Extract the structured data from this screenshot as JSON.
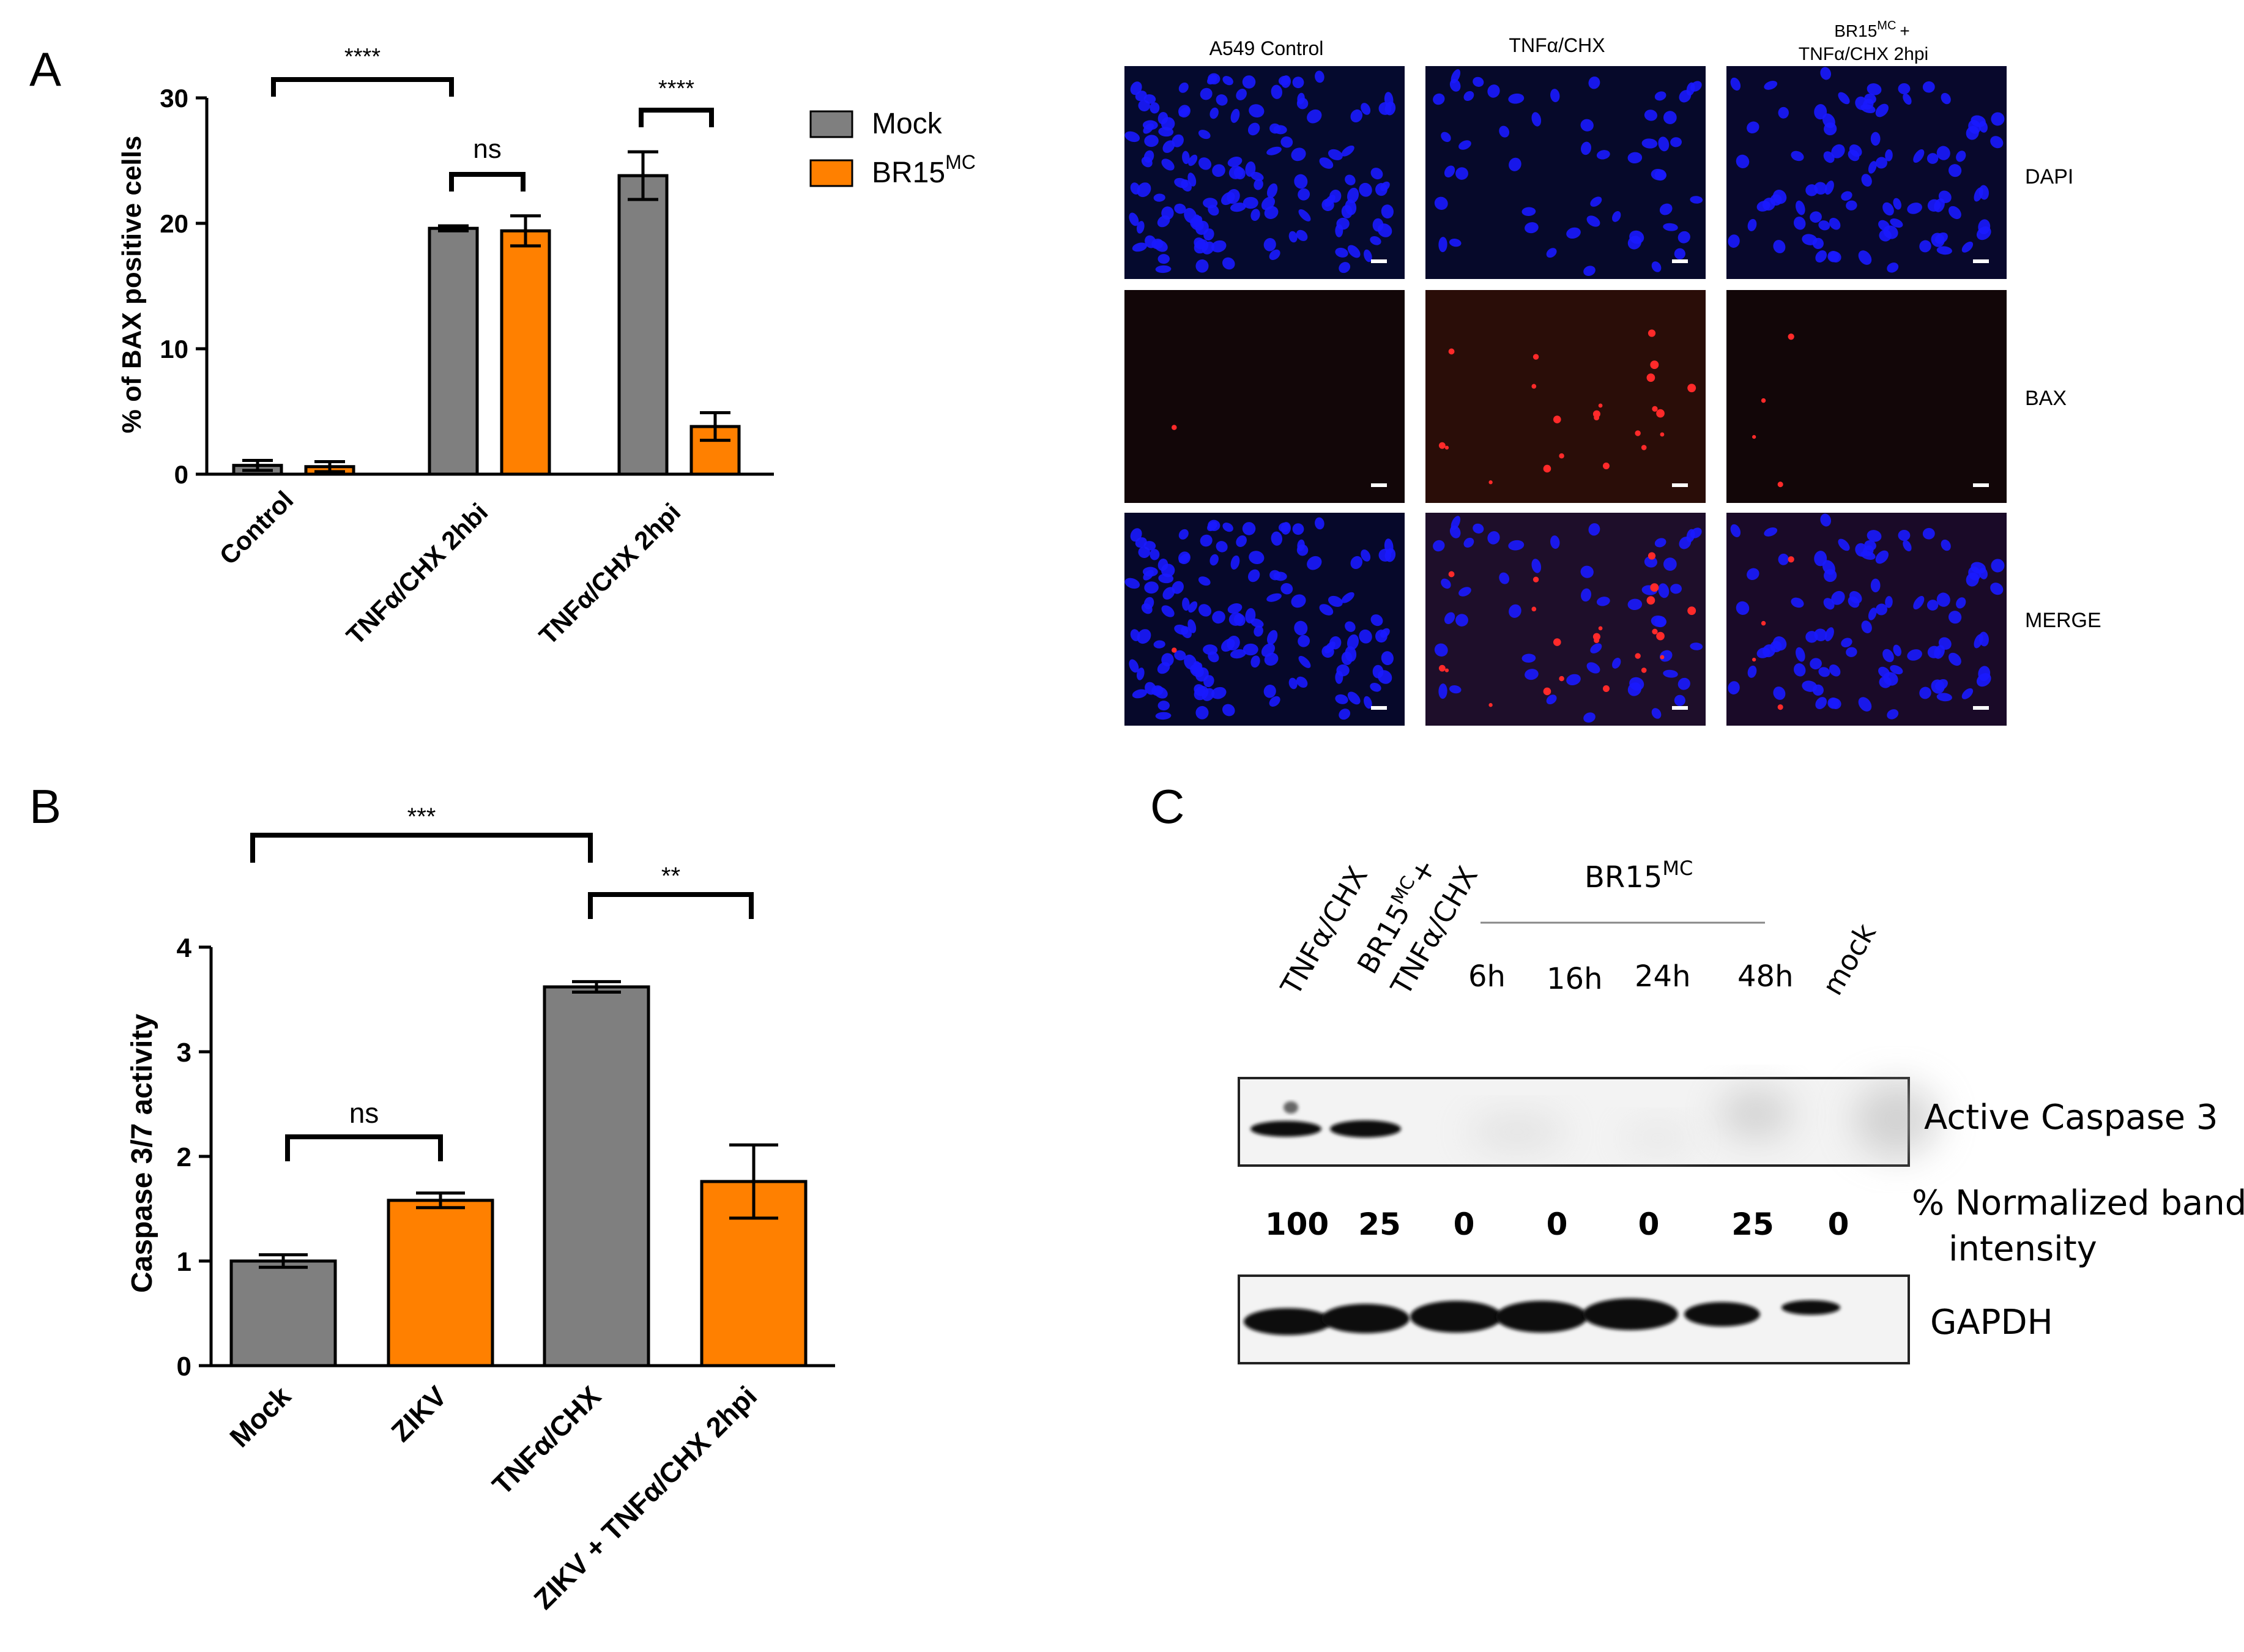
{
  "panels": {
    "a": "A",
    "b": "B",
    "c": "C"
  },
  "colors": {
    "mock": "#7f7f7f",
    "orange": "#ff8000",
    "dapi": "#1a1aff",
    "bax": "#ff2a2a"
  },
  "chart_data": [
    {
      "type": "bar",
      "panel": "A",
      "ylabel": "% of BAX positive cells",
      "ylim": [
        0,
        30
      ],
      "yticks": [
        "0",
        "10",
        "20",
        "30"
      ],
      "categories": [
        "Control",
        "TNFα/CHX 2hbi",
        "TNFα/CHX 2hpi"
      ],
      "series": [
        {
          "name": "Mock",
          "color": "#7f7f7f",
          "values": [
            0.7,
            19.6,
            23.8
          ],
          "errors": [
            0.4,
            0.2,
            1.9
          ]
        },
        {
          "name": "BR15MC",
          "name_main": "BR15",
          "name_sup": "MC",
          "color": "#ff8000",
          "values": [
            0.6,
            19.4,
            3.8
          ],
          "errors": [
            0.4,
            1.2,
            1.1
          ]
        }
      ],
      "significance": [
        {
          "label": "****"
        },
        {
          "label": "ns"
        },
        {
          "label": "****"
        }
      ],
      "legend": "right"
    },
    {
      "type": "bar",
      "panel": "B",
      "ylabel": "Caspase 3/7 activity",
      "ylim": [
        0,
        4
      ],
      "yticks": [
        "0",
        "1",
        "2",
        "3",
        "4"
      ],
      "categories": [
        "Mock",
        "ZIKV",
        "TNFα/CHX",
        "ZIKV + TNFα/CHX 2hpi"
      ],
      "values": [
        1.0,
        1.58,
        3.62,
        1.76
      ],
      "errors": [
        0.06,
        0.07,
        0.05,
        0.35
      ],
      "colors": [
        "#7f7f7f",
        "#ff8000",
        "#7f7f7f",
        "#ff8000"
      ],
      "significance": [
        {
          "label": "***"
        },
        {
          "label": "ns"
        },
        {
          "label": "**"
        }
      ]
    }
  ],
  "micrographs": {
    "columns": [
      "A549 Control",
      "TNFα/CHX",
      "BR15",
      "MC",
      "+",
      "TNFα/CHX 2hpi"
    ],
    "rows": [
      "DAPI",
      "BAX",
      "MERGE"
    ]
  },
  "western": {
    "lanes": [
      "TNFα/CHX",
      "BR15",
      "MC",
      "+",
      "TNFα/CHX",
      "6h",
      "16h",
      "24h",
      "48h",
      "mock"
    ],
    "group_label": "BR15",
    "group_sup": "MC",
    "bands": [
      "Active Caspase 3",
      "GAPDH"
    ],
    "intensity_label_1": "% Normalized band",
    "intensity_label_2": "intensity",
    "intensities": [
      "100",
      "25",
      "0",
      "0",
      "0",
      "25",
      "0"
    ]
  }
}
